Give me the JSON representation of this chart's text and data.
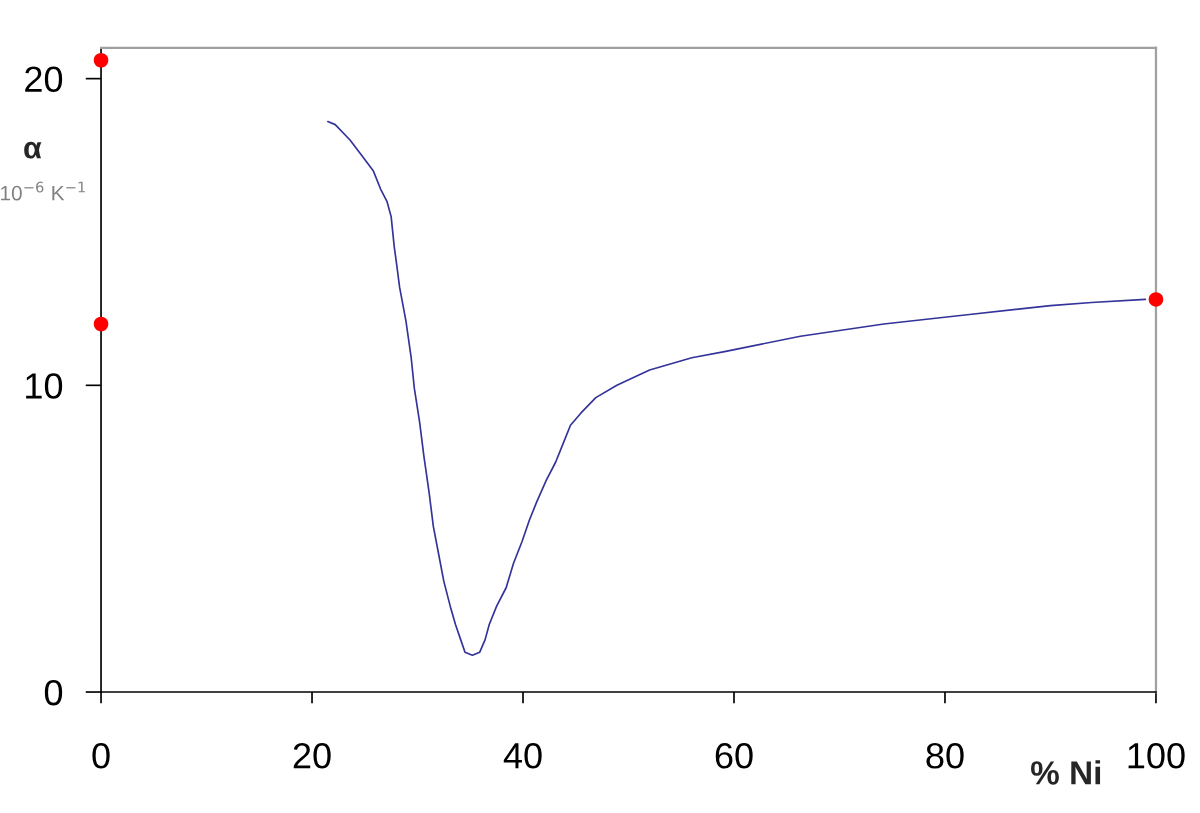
{
  "chart_data": {
    "type": "line",
    "xlabel": "% Ni",
    "ylabel": "α\n10$^{−6}$ K$^{−1}$",
    "xlim": [
      0,
      100
    ],
    "ylim": [
      0,
      21
    ],
    "xticks": [
      0,
      20,
      40,
      60,
      80,
      100
    ],
    "yticks": [
      0,
      10,
      20
    ],
    "grid": false,
    "series": [
      {
        "color": "#333399",
        "marker": "none",
        "line_style": "solid",
        "x": [
          21.5,
          22.2,
          23.6,
          24.7,
          25.8,
          26.5,
          27.1,
          27.5,
          27.8,
          28.0,
          28.3,
          28.9,
          29.4,
          29.7,
          30.2,
          30.6,
          31.1,
          31.5,
          32.0,
          32.5,
          33.1,
          33.6,
          34.1,
          34.5,
          35.2,
          35.9,
          36.4,
          36.8,
          37.5,
          38.4,
          39.1,
          39.9,
          40.6,
          41.3,
          42.2,
          43.1,
          43.8,
          44.5,
          45.5,
          46.9,
          48.9,
          52.0,
          56.0,
          59.1,
          66.3,
          74.2,
          82.1,
          90.0,
          93.9,
          99.0
        ],
        "values": [
          18.6,
          18.5,
          18.0,
          17.5,
          17.0,
          16.4,
          16.0,
          15.5,
          14.5,
          14.0,
          13.2,
          12.1,
          10.9,
          9.9,
          8.8,
          7.7,
          6.5,
          5.4,
          4.5,
          3.6,
          2.8,
          2.2,
          1.7,
          1.3,
          1.2,
          1.3,
          1.7,
          2.2,
          2.8,
          3.4,
          4.2,
          4.9,
          5.6,
          6.2,
          6.9,
          7.5,
          8.1,
          8.7,
          9.1,
          9.6,
          10.0,
          10.5,
          10.9,
          11.1,
          11.6,
          12.0,
          12.3,
          12.6,
          12.7,
          12.8
        ]
      },
      {
        "type": "scatter",
        "color": "#ff0000",
        "marker": "circle",
        "x": [
          0,
          0,
          100
        ],
        "values": [
          20.6,
          12,
          12.8
        ]
      }
    ]
  }
}
